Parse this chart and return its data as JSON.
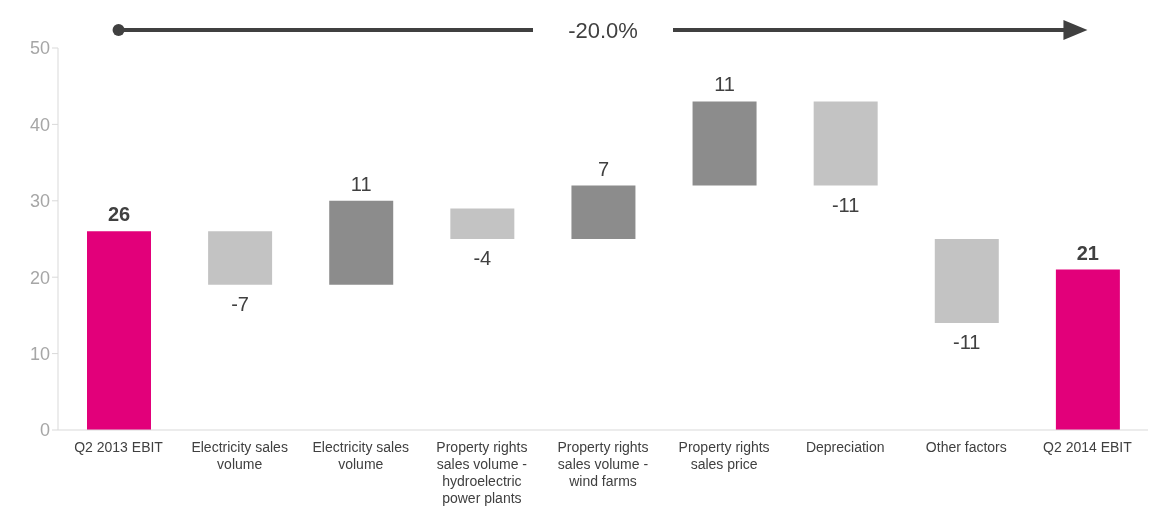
{
  "chart_data": {
    "type": "bar",
    "categories": [
      "Q2 2013 EBIT",
      "Electricity sales volume",
      "Electricity sales volume",
      "Property rights sales volume - hydroelectric power plants",
      "Property rights sales volume - wind farms",
      "Property rights sales price",
      "Depreciation",
      "Other factors",
      "Q2 2014 EBIT"
    ],
    "values": [
      26,
      -7,
      11,
      -4,
      7,
      11,
      -11,
      -11,
      21
    ],
    "base": [
      0,
      26,
      19,
      29,
      25,
      32,
      43,
      25,
      0
    ],
    "colors": [
      "#e2007a",
      "#c3c3c3",
      "#8c8c8c",
      "#c3c3c3",
      "#8c8c8c",
      "#8c8c8c",
      "#c3c3c3",
      "#c3c3c3",
      "#e2007a"
    ],
    "data_labels": true,
    "ylim": [
      0,
      50
    ],
    "yticks": [
      0,
      10,
      20,
      30,
      40,
      50
    ],
    "annotations": [
      "-20.0%"
    ]
  }
}
